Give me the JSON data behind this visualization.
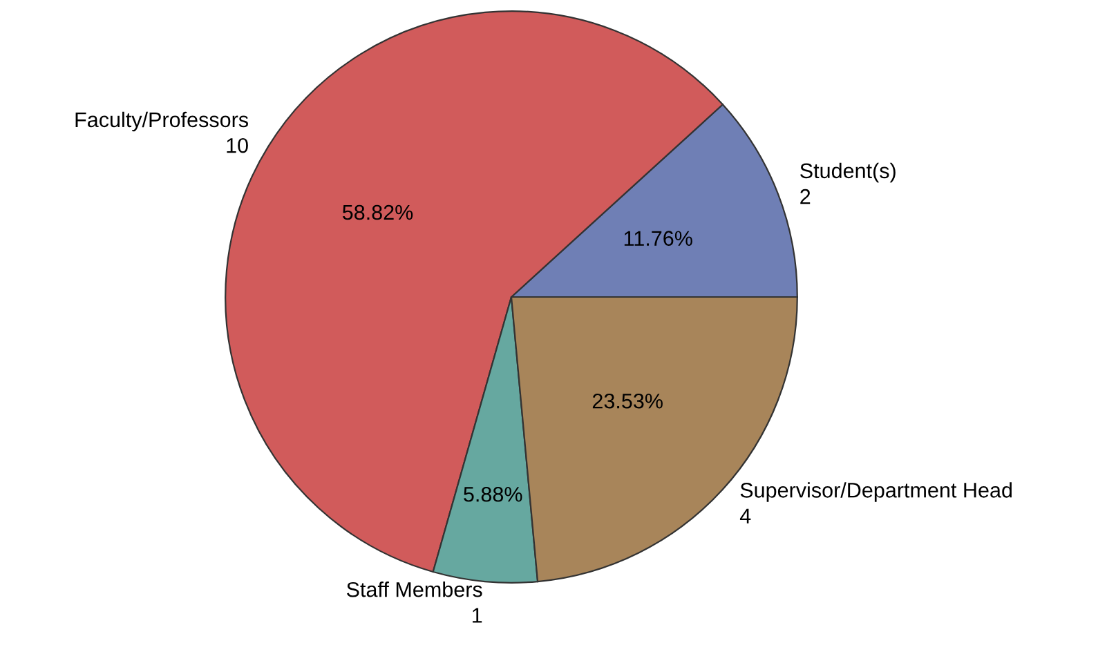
{
  "chart_data": {
    "type": "pie",
    "categories": [
      "Student(s)\n2",
      "Faculty/Professors\n10",
      "Staff Members\n1",
      "Supervisor/Department Head\n4"
    ],
    "values": [
      11.76,
      58.82,
      5.88,
      23.53
    ],
    "colors": [
      "#6f7fb5",
      "#d15b5b",
      "#66a8a0",
      "#a8855a"
    ],
    "value_labels": [
      "11.76%",
      "58.82%",
      "5.88%",
      "23.53%"
    ],
    "legend": false
  }
}
